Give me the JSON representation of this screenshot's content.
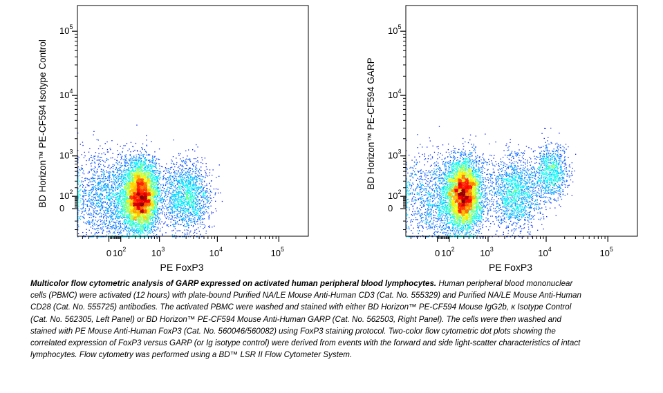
{
  "chart_data": [
    {
      "type": "scatter",
      "subtype": "flow cytometry density dot plot",
      "title": "",
      "xlabel": "PE FoxP3",
      "ylabel": "BD Horizon™ PE-CF594 Isotype Control",
      "x_scale": "biexponential",
      "y_scale": "biexponential",
      "xlim": [
        -400,
        300000
      ],
      "ylim": [
        -300,
        250000
      ],
      "x_ticks": [
        {
          "value": 0,
          "label": "0",
          "exp": ""
        },
        {
          "value": 100,
          "label": "10",
          "exp": "2"
        },
        {
          "value": 1000,
          "label": "10",
          "exp": "3"
        },
        {
          "value": 10000,
          "label": "10",
          "exp": "4"
        },
        {
          "value": 100000,
          "label": "10",
          "exp": "5"
        }
      ],
      "y_ticks": [
        {
          "value": 0,
          "label": "0",
          "exp": ""
        },
        {
          "value": 100,
          "label": "10",
          "exp": "2"
        },
        {
          "value": 1000,
          "label": "10",
          "exp": "3"
        },
        {
          "value": 10000,
          "label": "10",
          "exp": "4"
        },
        {
          "value": 100000,
          "label": "10",
          "exp": "5"
        }
      ],
      "populations": [
        {
          "x_center": 400,
          "y_center": 100,
          "x_spread": 0.2,
          "y_spread": 0.38,
          "weight": 0.58
        },
        {
          "x_center": 30,
          "y_center": 80,
          "x_spread": 0.5,
          "y_spread": 0.5,
          "weight": 0.24
        },
        {
          "x_center": 3000,
          "y_center": 100,
          "x_spread": 0.28,
          "y_spread": 0.38,
          "weight": 0.18
        }
      ],
      "grid": false,
      "legend": "none"
    },
    {
      "type": "scatter",
      "subtype": "flow cytometry density dot plot",
      "title": "",
      "xlabel": "PE FoxP3",
      "ylabel": "BD Horizon™ PE-CF594 GARP",
      "x_scale": "biexponential",
      "y_scale": "biexponential",
      "xlim": [
        -400,
        300000
      ],
      "ylim": [
        -300,
        250000
      ],
      "x_ticks": [
        {
          "value": 0,
          "label": "0",
          "exp": ""
        },
        {
          "value": 100,
          "label": "10",
          "exp": "2"
        },
        {
          "value": 1000,
          "label": "10",
          "exp": "3"
        },
        {
          "value": 10000,
          "label": "10",
          "exp": "4"
        },
        {
          "value": 100000,
          "label": "10",
          "exp": "5"
        }
      ],
      "y_ticks": [
        {
          "value": 0,
          "label": "0",
          "exp": ""
        },
        {
          "value": 100,
          "label": "10",
          "exp": "2"
        },
        {
          "value": 1000,
          "label": "10",
          "exp": "3"
        },
        {
          "value": 10000,
          "label": "10",
          "exp": "4"
        },
        {
          "value": 100000,
          "label": "10",
          "exp": "5"
        }
      ],
      "populations": [
        {
          "x_center": 300,
          "y_center": 120,
          "x_spread": 0.2,
          "y_spread": 0.38,
          "weight": 0.52
        },
        {
          "x_center": 30,
          "y_center": 80,
          "x_spread": 0.5,
          "y_spread": 0.5,
          "weight": 0.2
        },
        {
          "x_center": 3000,
          "y_center": 150,
          "x_spread": 0.3,
          "y_spread": 0.4,
          "weight": 0.18
        },
        {
          "x_center": 12000,
          "y_center": 500,
          "x_spread": 0.18,
          "y_spread": 0.3,
          "weight": 0.1
        }
      ],
      "grid": false,
      "legend": "none"
    }
  ],
  "caption": {
    "bold": "Multicolor flow cytometric analysis of GARP expressed on activated human peripheral blood lymphocytes.",
    "text": " Human peripheral blood mononuclear cells (PBMC) were activated (12 hours) with plate-bound Purified NA/LE Mouse Anti-Human CD3 (Cat. No. 555329) and Purified NA/LE Mouse Anti-Human CD28 (Cat. No. 555725) antibodies. The activated PBMC were washed and stained with either BD Horizon™ PE-CF594 Mouse IgG2b, κ Isotype Control (Cat. No. 562305, Left Panel) or BD Horizon™ PE-CF594 Mouse Anti-Human GARP (Cat. No. 562503, Right Panel). The cells were then washed and stained with PE Mouse Anti-Human FoxP3 (Cat. No. 560046/560082) using FoxP3 staining protocol. Two-color flow cytometric dot plots showing the correlated expression of FoxP3 versus GARP (or Ig isotype control) were derived from events with the forward and side light-scatter characteristics of intact lymphocytes. Flow cytometry was performed using a BD™ LSR II Flow Cytometer System."
  }
}
